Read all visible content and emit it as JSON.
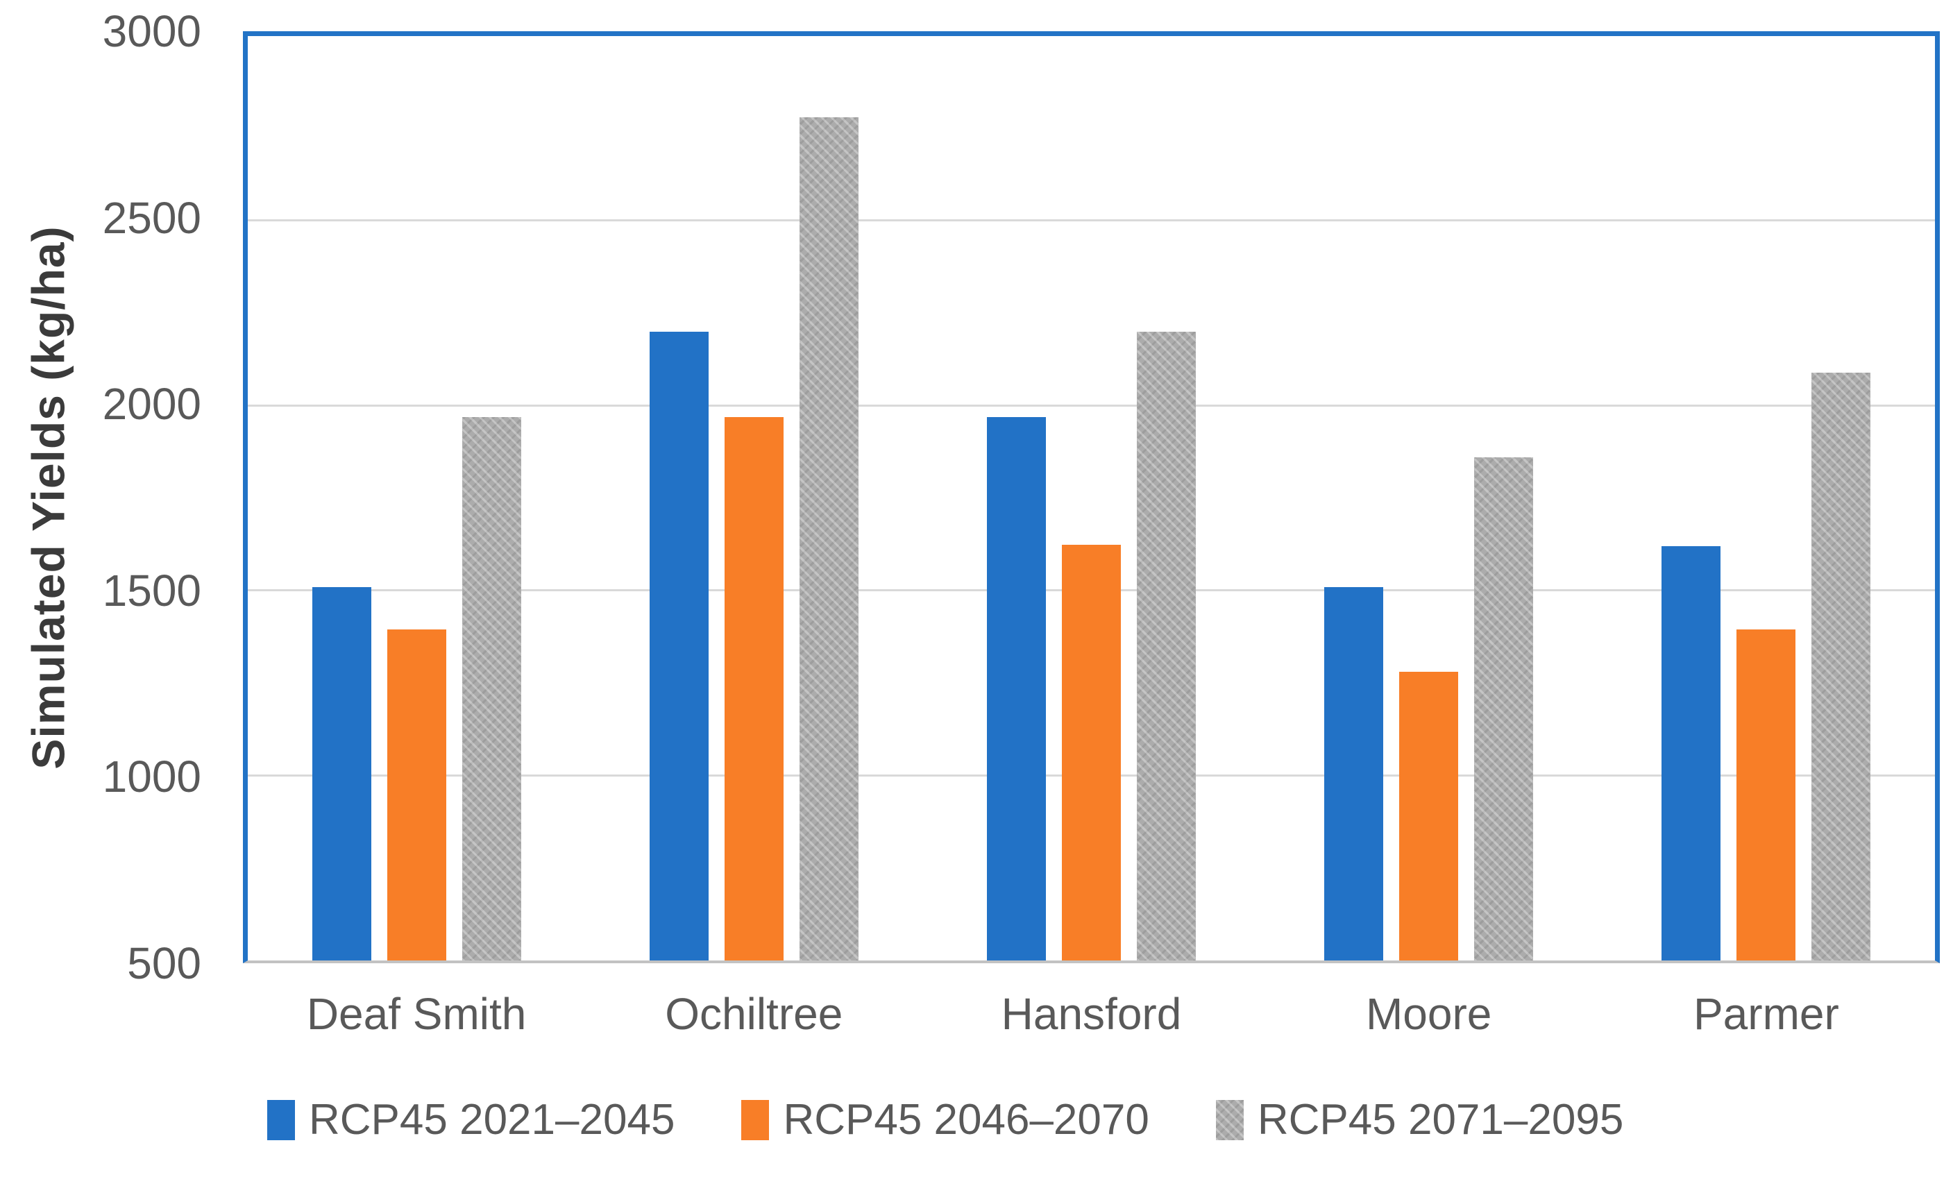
{
  "chart_data": {
    "type": "bar",
    "title": "",
    "ylabel": "Simulated Yields (kg/ha)",
    "xlabel": "",
    "ylim": [
      500,
      3000
    ],
    "yticks": [
      500,
      1000,
      1500,
      2000,
      2500,
      3000
    ],
    "grid": true,
    "legend_position": "bottom",
    "plot_border_color": "#2273c6",
    "gridline_color": "#d9d9d9",
    "categories": [
      "Deaf Smith",
      "Ochiltree",
      "Hansford",
      "Moore",
      "Parmer"
    ],
    "series": [
      {
        "name": "RCP45 2021–2045",
        "color": "#2272c6",
        "pattern": "solid",
        "values": [
          1510,
          2200,
          1970,
          1510,
          1620
        ]
      },
      {
        "name": "RCP45 2046–2070",
        "color": "#f87e27",
        "pattern": "solid",
        "values": [
          1395,
          1970,
          1625,
          1280,
          1395
        ]
      },
      {
        "name": "RCP45 2071–2095",
        "color": "#ababab",
        "pattern": "zigzag",
        "values": [
          1970,
          2780,
          2200,
          1860,
          2090
        ]
      }
    ]
  }
}
